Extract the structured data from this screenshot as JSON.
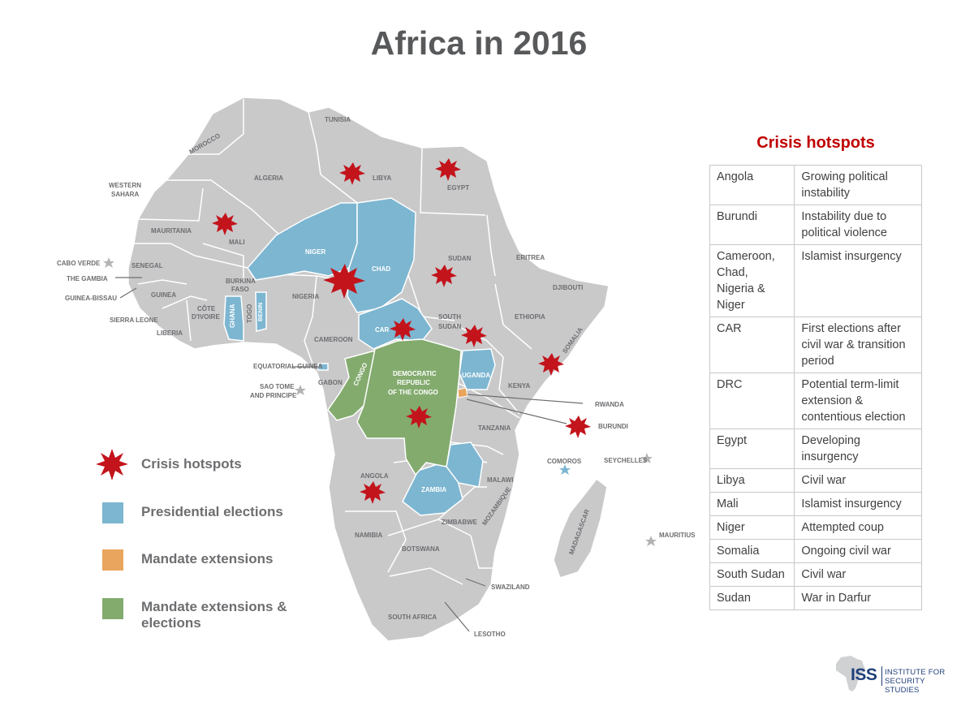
{
  "title": "Africa in 2016",
  "colors": {
    "land": "#c9c9ca",
    "crisis": "#c3141c",
    "presidential": "#7db6d1",
    "mandate": "#e9a55d",
    "mandate_elections": "#83ab6e",
    "table_title": "#c00000"
  },
  "legend": {
    "crisis": "Crisis hotspots",
    "presidential": "Presidential elections",
    "mandate": "Mandate extensions",
    "mandate_elections": "Mandate extensions & elections"
  },
  "table": {
    "title": "Crisis hotspots",
    "rows": [
      {
        "country": "Angola",
        "issue": "Growing political instability"
      },
      {
        "country": "Burundi",
        "issue": "Instability due to political violence"
      },
      {
        "country": "Cameroon, Chad, Nigeria & Niger",
        "issue": "Islamist insurgency"
      },
      {
        "country": "CAR",
        "issue": "First elections after civil war & transition period"
      },
      {
        "country": "DRC",
        "issue": "Potential term-limit extension & contentious election"
      },
      {
        "country": "Egypt",
        "issue": "Developing insurgency"
      },
      {
        "country": "Libya",
        "issue": "Civil war"
      },
      {
        "country": "Mali",
        "issue": "Islamist insurgency"
      },
      {
        "country": "Niger",
        "issue": "Attempted coup"
      },
      {
        "country": "Somalia",
        "issue": "Ongoing civil war"
      },
      {
        "country": "South Sudan",
        "issue": "Civil war"
      },
      {
        "country": "Sudan",
        "issue": "War in Darfur"
      }
    ]
  },
  "map_labels": {
    "tunisia": "TUNISIA",
    "morocco": "MOROCCO",
    "algeria": "ALGERIA",
    "libya": "LIBYA",
    "egypt": "EGYPT",
    "western_sahara_1": "WESTERN",
    "western_sahara_2": "SAHARA",
    "mauritania": "MAURITANIA",
    "mali": "MALI",
    "niger": "NIGER",
    "chad": "CHAD",
    "sudan": "SUDAN",
    "eritrea": "ERITREA",
    "djibouti": "DJIBOUTI",
    "ethiopia": "ETHIOPIA",
    "somalia": "SOMALIA",
    "south_sudan_1": "SOUTH",
    "south_sudan_2": "SUDAN",
    "car": "CAR",
    "nigeria": "NIGERIA",
    "cameroon": "CAMEROON",
    "burkina_1": "BURKINA",
    "burkina_2": "FASO",
    "cote_1": "CÔTE",
    "cote_2": "D'IVOIRE",
    "ghana": "GHANA",
    "togo": "TOGO",
    "benin": "BENIN",
    "guinea": "GUINEA",
    "senegal": "SENEGAL",
    "liberia": "LIBERIA",
    "sierra_leone": "SIERRA LEONE",
    "the_gambia": "THE GAMBIA",
    "guinea_bissau": "GUINEA-BISSAU",
    "cabo_verde": "CABO VERDE",
    "equatorial_guinea": "EQUATORIAL GUINEA",
    "sao_tome_1": "SAO TOME",
    "sao_tome_2": "AND PRINCIPE",
    "gabon": "GABON",
    "congo": "CONGO",
    "drc_1": "DEMOCRATIC",
    "drc_2": "REPUBLIC",
    "drc_3": "OF THE CONGO",
    "uganda": "UGANDA",
    "kenya": "KENYA",
    "rwanda": "RWANDA",
    "burundi": "BURUNDI",
    "tanzania": "TANZANIA",
    "comoros": "COMOROS",
    "seychelles": "SEYCHELLES",
    "angola": "ANGOLA",
    "zambia": "ZAMBIA",
    "malawi": "MALAWI",
    "mozambique": "MOZAMBIQUE",
    "zimbabwe": "ZIMBABWE",
    "namibia": "NAMIBIA",
    "botswana": "BOTSWANA",
    "madagascar": "MADAGASCAR",
    "mauritius": "MAURITIUS",
    "swaziland": "SWAZILAND",
    "lesotho": "LESOTHO",
    "south_africa": "SOUTH AFRICA"
  },
  "logo": {
    "mark": "ISS",
    "line1": "INSTITUTE FOR",
    "line2": "SECURITY STUDIES"
  }
}
